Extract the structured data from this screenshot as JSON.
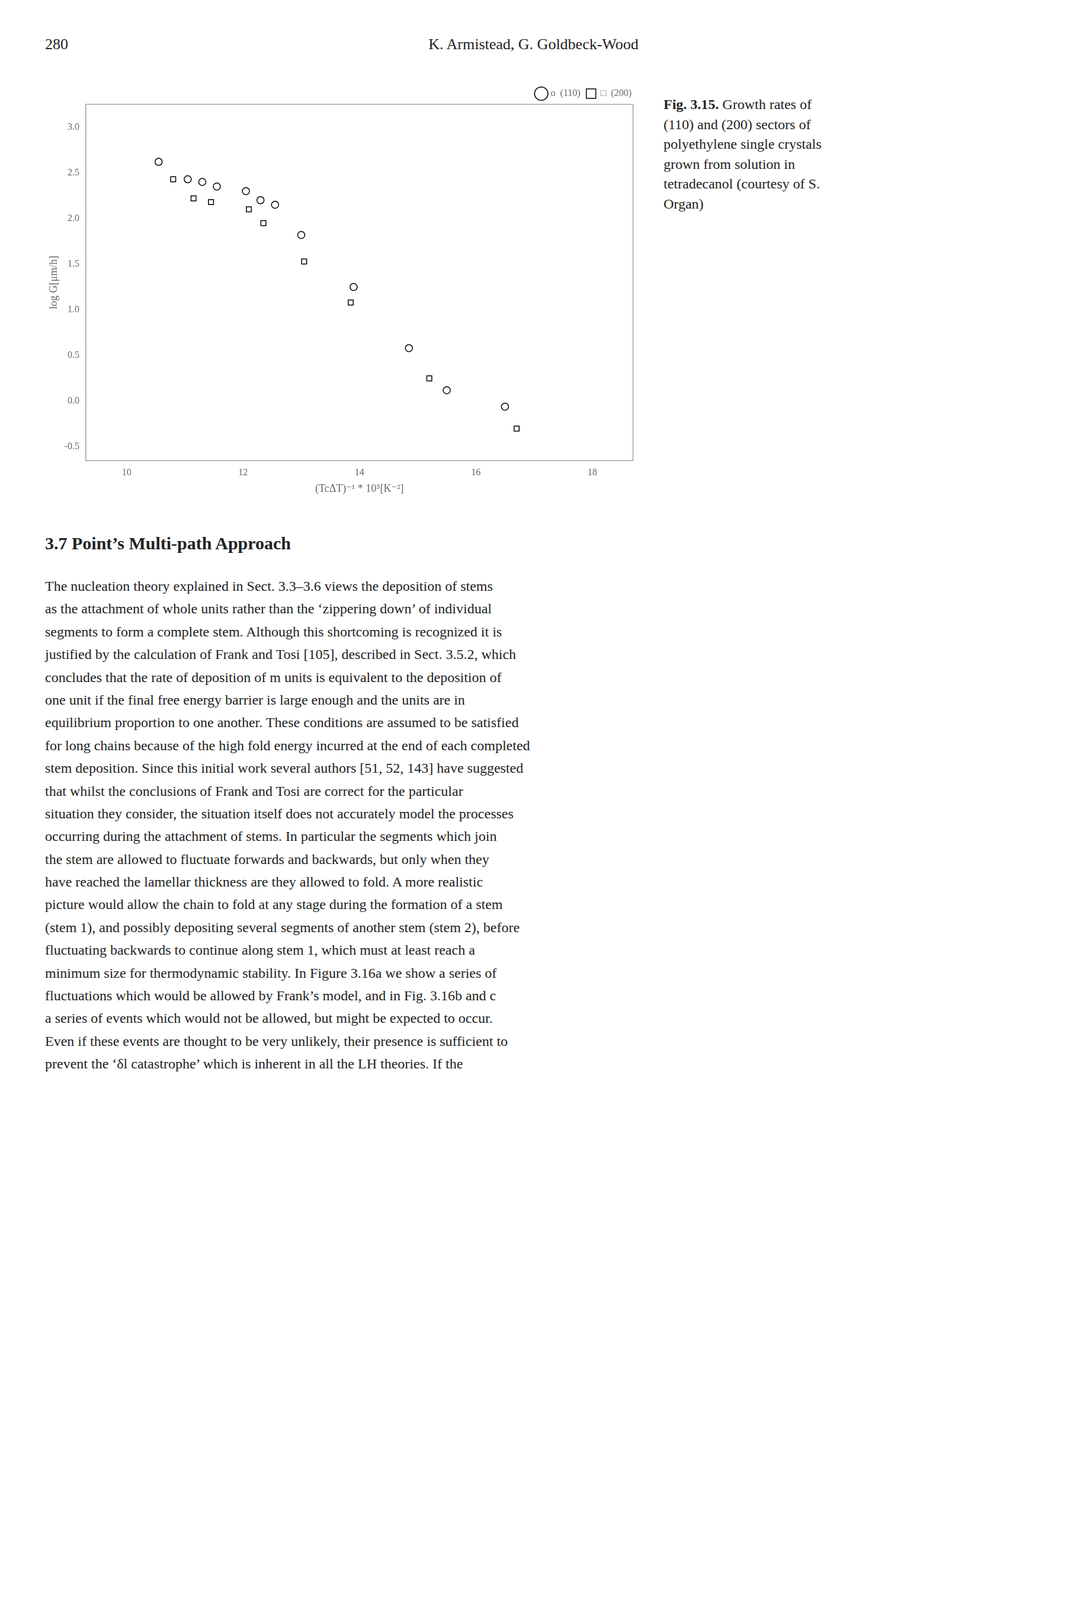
{
  "chart_data": {
    "type": "scatter",
    "xlabel": "(TcΔT)⁻¹ * 10⁵[K⁻²]",
    "ylabel": "log G[μm/h]",
    "xlim": [
      9.3,
      18.7
    ],
    "ylim": [
      -0.65,
      3.25
    ],
    "xticks": [
      10,
      12,
      14,
      16,
      18
    ],
    "yticks": [
      -0.5,
      {
        "value": 0,
        "label": "0.0"
      },
      0.5,
      {
        "value": 1,
        "label": "1.0"
      },
      1.5,
      {
        "value": 2,
        "label": "2.0"
      },
      2.5,
      {
        "value": 3,
        "label": "3.0"
      }
    ],
    "grid": false,
    "legend": "upper right",
    "series": [
      {
        "name": "o  (110)",
        "color": "#000000",
        "marker": "circle",
        "x": [
          10.55,
          11.05,
          11.3,
          11.55,
          12.05,
          12.3,
          12.55,
          13.0,
          13.9,
          14.85,
          15.5,
          16.5
        ],
        "values": [
          2.62,
          2.43,
          2.4,
          2.35,
          2.3,
          2.2,
          2.15,
          1.82,
          1.25,
          0.58,
          0.12,
          -0.06
        ]
      },
      {
        "name": "□  (200)",
        "color": "#000000",
        "marker": "square",
        "x": [
          10.8,
          11.15,
          11.45,
          12.1,
          12.35,
          13.05,
          13.85,
          15.2,
          16.7
        ],
        "values": [
          2.43,
          2.22,
          2.18,
          2.1,
          1.95,
          1.53,
          1.08,
          0.25,
          -0.3
        ]
      }
    ],
    "annotations": [
      "280",
      "K. Armistead, G. Goldbeck-Wood",
      "Fig. 3.15.",
      " Growth rates of\n(110) and (200) sectors of\npolyethylene single crystals\ngrown from solution in\ntetradecanol (courtesy of S.\nOrgan)",
      "3.7 Point’s Multi-path Approach",
      "The nucleation theory explained in Sect. 3.3–3.6 views the deposition of stems",
      "as the attachment of whole units rather than the ‘zippering down’ of individual",
      "segments to form a complete stem. Although this shortcoming is recognized it is",
      "justified by the calculation of Frank and Tosi [105], described in Sect. 3.5.2, which",
      "concludes that the rate of deposition of m units is equivalent to the deposition of",
      "one unit if the final free energy barrier is large enough and the units are in",
      "equilibrium proportion to one another. These conditions are assumed to be satisfied",
      "for long chains because of the high fold energy incurred at the end of each completed",
      "stem deposition. Since this initial work several authors [51, 52, 143] have suggested",
      "that whilst the conclusions of Frank and Tosi are correct for the particular",
      "situation they consider, the situation itself does not accurately model the processes",
      "occurring during the attachment of stems. In particular the segments which join",
      "the stem are allowed to fluctuate forwards and backwards, but only when they",
      "have reached the lamellar thickness are they allowed to fold. A more realistic",
      "picture would allow the chain to fold at any stage during the formation of a stem",
      "(stem 1), and possibly depositing several segments of another stem (stem 2), before",
      "fluctuating backwards to continue along stem 1, which must at least reach a",
      "minimum size for thermodynamic stability. In Figure 3.16a we show a series of",
      "fluctuations which would be allowed by Frank’s model, and in Fig. 3.16b and c",
      "a series of events which would not be allowed, but might be expected to occur.",
      "Even if these events are thought to be very unlikely, their presence is sufficient to",
      "prevent the ‘δl catastrophe’ which is inherent in all the LH theories. If the"
    ]
  }
}
